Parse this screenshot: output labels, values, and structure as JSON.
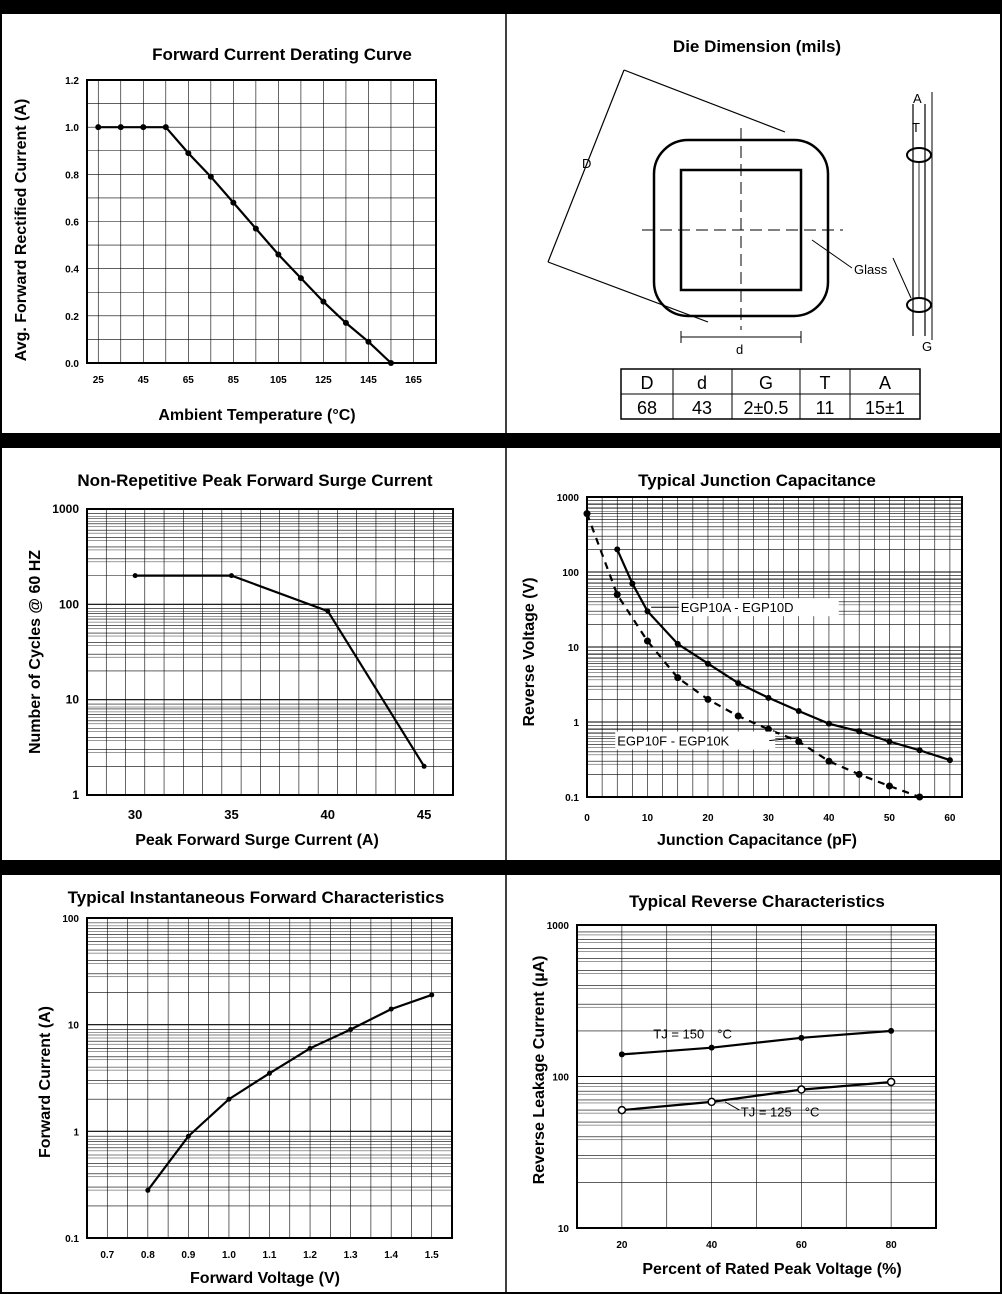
{
  "chart_data": [
    {
      "id": "derating",
      "type": "line",
      "title": "Forward Current Derating Curve",
      "xlabel": "Ambient Temperature (°C)",
      "ylabel": "Avg. Forward Rectified Current (A)",
      "xlim": [
        20,
        175
      ],
      "ylim": [
        0,
        1.2
      ],
      "xticks": [
        "25",
        "45",
        "65",
        "85",
        "105",
        "125",
        "145",
        "165"
      ],
      "yticks": [
        "0.0",
        "0.2",
        "0.4",
        "0.6",
        "0.8",
        "1.0",
        "1.2"
      ],
      "grid": true,
      "x": [
        25,
        35,
        45,
        55,
        65,
        75,
        85,
        95,
        105,
        115,
        125,
        135,
        145,
        155
      ],
      "y": [
        1.0,
        1.0,
        1.0,
        1.0,
        0.89,
        0.79,
        0.68,
        0.57,
        0.46,
        0.36,
        0.26,
        0.17,
        0.09,
        0.0
      ]
    },
    {
      "id": "surge",
      "type": "line",
      "title": "Non-Repetitive Peak Forward Surge Current",
      "xlabel": "Peak Forward Surge Current (A)",
      "ylabel": "Number of Cycles @ 60 HZ",
      "xlim": [
        27.5,
        46.5
      ],
      "ylim": [
        1,
        1000
      ],
      "yscale": "log",
      "xticks": [
        "30",
        "35",
        "40",
        "45"
      ],
      "yticks": [
        "1",
        "10",
        "100",
        "1000"
      ],
      "grid": true,
      "x": [
        30,
        35,
        40,
        45
      ],
      "y": [
        200,
        200,
        85,
        2
      ]
    },
    {
      "id": "capacitance",
      "type": "line",
      "title": "Typical Junction Capacitance",
      "xlabel": "Junction Capacitance (pF)",
      "ylabel": "Reverse Voltage (V)",
      "xlim": [
        0,
        62
      ],
      "ylim": [
        0.1,
        1000
      ],
      "yscale": "log",
      "xticks": [
        "0",
        "10",
        "20",
        "30",
        "40",
        "50",
        "60"
      ],
      "yticks": [
        "0.1",
        "1",
        "10",
        "100",
        "1000"
      ],
      "grid": true,
      "series": [
        {
          "name": "EGP10A - EGP10D",
          "style": "solid",
          "x": [
            5,
            7.5,
            10,
            15,
            20,
            25,
            30,
            35,
            40,
            45,
            50,
            55,
            60
          ],
          "y": [
            200,
            70,
            30,
            11,
            6,
            3.3,
            2.1,
            1.4,
            0.95,
            0.75,
            0.55,
            0.42,
            0.31
          ]
        },
        {
          "name": "EGP10F - EGP10K",
          "style": "dashed",
          "x": [
            0,
            5,
            10,
            15,
            20,
            25,
            30,
            35,
            40,
            45,
            50,
            55
          ],
          "y": [
            600,
            50,
            12,
            3.9,
            2.0,
            1.2,
            0.8,
            0.55,
            0.3,
            0.2,
            0.14,
            0.1
          ]
        }
      ]
    },
    {
      "id": "forward",
      "type": "line",
      "title": "Typical Instantaneous Forward Characteristics",
      "xlabel": "Forward Voltage (V)",
      "ylabel": "Forward Current (A)",
      "xlim": [
        0.65,
        1.55
      ],
      "ylim": [
        0.1,
        100
      ],
      "yscale": "log",
      "xticks": [
        "0.7",
        "0.8",
        "0.9",
        "1.0",
        "1.1",
        "1.2",
        "1.3",
        "1.4",
        "1.5"
      ],
      "yticks": [
        "0.1",
        "1",
        "10",
        "100"
      ],
      "grid": true,
      "x": [
        0.8,
        0.9,
        1.0,
        1.1,
        1.2,
        1.3,
        1.4,
        1.5
      ],
      "y": [
        0.28,
        0.9,
        2.0,
        3.5,
        6.0,
        9.0,
        14.0,
        19.0
      ]
    },
    {
      "id": "reverse",
      "type": "line",
      "title": "Typical Reverse Characteristics",
      "xlabel": "Percent of Rated Peak Voltage (%)",
      "ylabel": "Reverse Leakage Current (µA)",
      "xlim": [
        10,
        90
      ],
      "ylim": [
        10,
        1000
      ],
      "yscale": "log",
      "xticks": [
        "20",
        "40",
        "60",
        "80"
      ],
      "yticks": [
        "10",
        "100",
        "1000"
      ],
      "grid": true,
      "series": [
        {
          "name": "TJ = 150",
          "unit": "°C",
          "marker": "filled",
          "x": [
            20,
            40,
            60,
            80
          ],
          "y": [
            140,
            155,
            180,
            200
          ]
        },
        {
          "name": "TJ = 125",
          "unit": "°C",
          "marker": "open",
          "x": [
            20,
            40,
            60,
            80
          ],
          "y": [
            60,
            68,
            82,
            92
          ]
        }
      ]
    }
  ],
  "die": {
    "title": "Die Dimension (mils)",
    "labels": {
      "D": "D",
      "d": "d",
      "glass": "Glass",
      "A": "A",
      "T": "T",
      "G": "G"
    },
    "table": {
      "headers": [
        "D",
        "d",
        "G",
        "T",
        "A"
      ],
      "values": [
        "68",
        "43",
        "2±0.5",
        "11",
        "15±1"
      ]
    }
  }
}
